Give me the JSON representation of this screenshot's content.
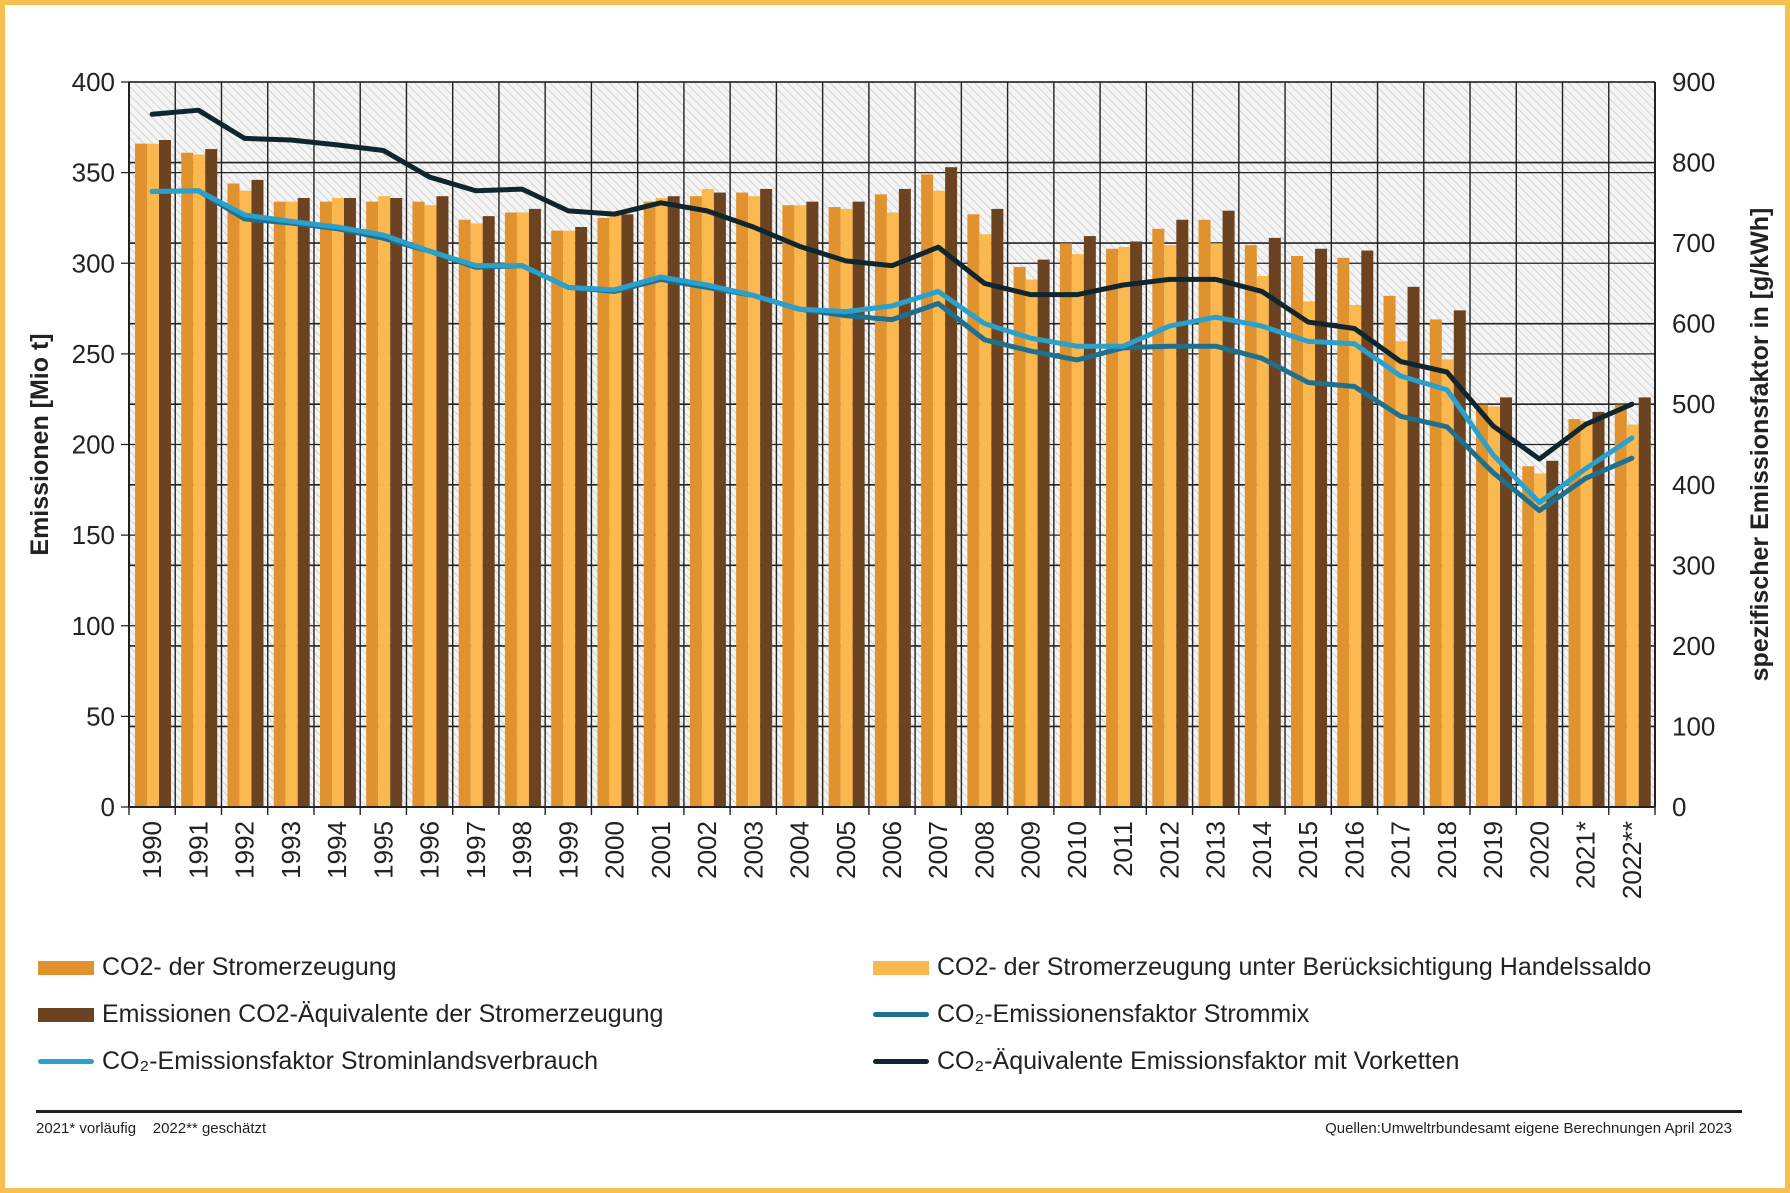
{
  "chart_data": {
    "type": "bar+line",
    "categories": [
      "1990",
      "1991",
      "1992",
      "1993",
      "1994",
      "1995",
      "1996",
      "1997",
      "1998",
      "1999",
      "2000",
      "2001",
      "2002",
      "2003",
      "2004",
      "2005",
      "2006",
      "2007",
      "2008",
      "2009",
      "2010",
      "2011",
      "2012",
      "2013",
      "2014",
      "2015",
      "2016",
      "2017",
      "2018",
      "2019",
      "2020",
      "2021*",
      "2022**"
    ],
    "ylabel": "Emissionen  [Mio t]",
    "ylabel_right": "spezifischer Emissionsfaktor  in [g/kWh]",
    "ylim": [
      0,
      400
    ],
    "ylim_right": [
      0,
      900
    ],
    "yticks": [
      0,
      50,
      100,
      150,
      200,
      250,
      300,
      350,
      400
    ],
    "yticks_right": [
      0,
      100,
      200,
      300,
      400,
      500,
      600,
      700,
      800,
      900
    ],
    "grid": true,
    "legend_placement": "bottom",
    "bar_series": [
      {
        "name": "CO2- der Stromerzeugung",
        "color": "#e0922e",
        "values": [
          366,
          361,
          344,
          334,
          334,
          334,
          334,
          324,
          328,
          318,
          325,
          334,
          337,
          339,
          332,
          331,
          338,
          349,
          327,
          298,
          311,
          308,
          319,
          324,
          310,
          304,
          303,
          282,
          269,
          222,
          188,
          214,
          222
        ]
      },
      {
        "name": "CO2- der Stromerzeugung unter Berücksichtigung Handelssaldo",
        "color": "#fbb84f",
        "values": [
          366,
          360,
          340,
          334,
          336,
          337,
          332,
          322,
          328,
          318,
          327,
          336,
          341,
          337,
          332,
          330,
          328,
          340,
          316,
          291,
          305,
          309,
          310,
          311,
          293,
          279,
          277,
          257,
          247,
          221,
          184,
          213,
          211
        ]
      },
      {
        "name": "Emissionen CO2-Äquivalente der Stromerzeugung",
        "color": "#6b4320",
        "values": [
          368,
          363,
          346,
          336,
          336,
          336,
          337,
          326,
          330,
          320,
          327,
          337,
          339,
          341,
          334,
          334,
          341,
          353,
          330,
          302,
          315,
          312,
          324,
          329,
          314,
          308,
          307,
          287,
          274,
          226,
          191,
          218,
          226
        ]
      }
    ],
    "line_series": [
      {
        "name": "CO₂-Emissionensfaktor Strommix",
        "color": "#1f6f8e",
        "axis": "right",
        "values": [
          764,
          765,
          730,
          725,
          718,
          706,
          690,
          670,
          672,
          645,
          640,
          655,
          645,
          635,
          618,
          610,
          605,
          625,
          580,
          566,
          555,
          570,
          572,
          572,
          557,
          527,
          522,
          485,
          472,
          415,
          368,
          408,
          433
        ]
      },
      {
        "name": "CO₂-Emissionsfaktor Strominlandsverbrauch",
        "color": "#2aa0cc",
        "axis": "right",
        "values": [
          764,
          765,
          735,
          727,
          720,
          710,
          690,
          672,
          672,
          645,
          642,
          658,
          648,
          635,
          618,
          615,
          622,
          640,
          600,
          582,
          572,
          572,
          597,
          608,
          597,
          578,
          575,
          535,
          518,
          437,
          378,
          420,
          458
        ]
      },
      {
        "name": "CO₂-Äquivalente Emissionsfaktor mit Vorketten",
        "color": "#10262e",
        "axis": "right",
        "values": [
          860,
          865,
          830,
          828,
          822,
          815,
          782,
          765,
          767,
          740,
          736,
          750,
          740,
          720,
          696,
          678,
          672,
          695,
          650,
          636,
          636,
          648,
          655,
          655,
          640,
          602,
          594,
          553,
          540,
          473,
          432,
          475,
          500
        ]
      }
    ]
  },
  "legend": [
    "CO2- der Stromerzeugung",
    "CO2- der Stromerzeugung unter Berücksichtigung Handelssaldo",
    "Emissionen CO2-Äquivalente der Stromerzeugung",
    "CO₂-Emissionensfaktor Strommix",
    "CO₂-Emissionsfaktor Strominlandsverbrauch",
    "CO₂-Äquivalente Emissionsfaktor mit Vorketten"
  ],
  "footnote": "2021* vorläufig    2022** geschätzt",
  "source": "Quellen:Umweltrbundesamt  eigene Berechnungen April 2023"
}
